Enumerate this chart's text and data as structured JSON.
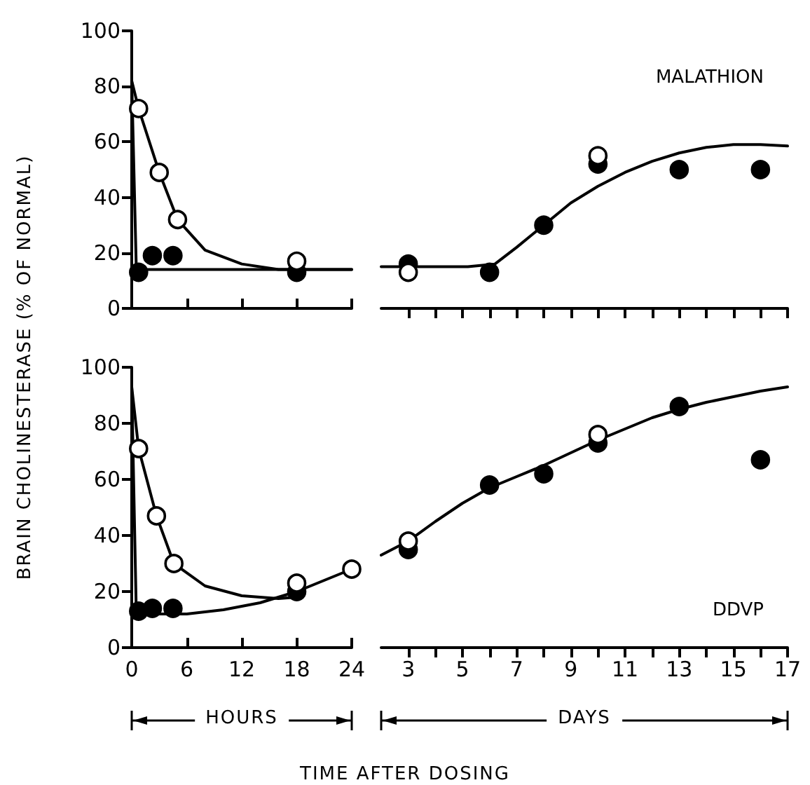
{
  "chart_data": [
    {
      "type": "scatter",
      "ylabel": "BRAIN CHOLINESTERASE  (% OF NORMAL)",
      "xlim": [
        0,
        24
      ],
      "xticks": [
        0,
        6,
        12,
        18,
        24
      ],
      "ylim": [
        0,
        100
      ],
      "yticks": [
        0,
        20,
        40,
        60,
        80,
        100
      ],
      "tick_labels": "y",
      "marker": "circle",
      "series": [
        {
          "type": "line",
          "marker": "none",
          "color": "#000000",
          "x": [
            0,
            0.75,
            3,
            5,
            8,
            12,
            16,
            24
          ],
          "values": [
            82,
            72,
            49,
            32,
            21,
            16,
            14,
            14
          ]
        },
        {
          "type": "line",
          "marker": "none",
          "color": "#000000",
          "x": [
            0,
            0.5,
            24
          ],
          "values": [
            82,
            14,
            14
          ]
        },
        {
          "color": "#000000",
          "x": [
            0.75,
            2.25,
            4.5,
            18
          ],
          "values": [
            13,
            19,
            19,
            13
          ]
        },
        {
          "color": "#ffffff",
          "x": [
            0.75,
            3,
            5,
            18
          ],
          "values": [
            72,
            49,
            32,
            17
          ]
        }
      ]
    },
    {
      "type": "scatter",
      "title": "MALATHION",
      "xlim": [
        2,
        17
      ],
      "xticks": [
        3,
        {
          "value": 4,
          "label": null
        },
        5,
        {
          "value": 6,
          "label": null
        },
        7,
        {
          "value": 8,
          "label": null
        },
        9,
        {
          "value": 10,
          "label": null
        },
        11,
        {
          "value": 12,
          "label": null
        },
        13,
        {
          "value": 14,
          "label": null
        },
        15,
        {
          "value": 16,
          "label": null
        },
        17
      ],
      "ylim": [
        0,
        100
      ],
      "tick_labels": false,
      "marker": "circle",
      "series": [
        {
          "type": "line",
          "marker": "none",
          "color": "#000000",
          "x": [
            2,
            5.2,
            6.2,
            7,
            8,
            9,
            10,
            11,
            12,
            13,
            14,
            15,
            16,
            17
          ],
          "values": [
            15,
            15,
            16,
            22,
            30,
            38,
            44,
            49,
            53,
            56,
            58,
            59,
            59,
            58.5
          ]
        },
        {
          "color": "#000000",
          "x": [
            3,
            6,
            8,
            10,
            13,
            16
          ],
          "values": [
            16,
            13,
            30,
            52,
            50,
            50
          ]
        },
        {
          "color": "#ffffff",
          "x": [
            3,
            10
          ],
          "values": [
            13,
            55
          ]
        }
      ]
    },
    {
      "type": "scatter",
      "xlabel": "HOURS",
      "annotations": [
        "TIME AFTER DOSING"
      ],
      "xlim": [
        0,
        24
      ],
      "xticks": [
        0,
        6,
        12,
        18,
        24
      ],
      "ylim": [
        0,
        100
      ],
      "yticks": [
        0,
        20,
        40,
        60,
        80,
        100
      ],
      "marker": "circle",
      "series": [
        {
          "type": "line",
          "marker": "none",
          "color": "#000000",
          "x": [
            0,
            0.75,
            2.7,
            4.6,
            8,
            12,
            16,
            18
          ],
          "values": [
            93,
            71,
            47,
            30,
            22,
            18.5,
            17.5,
            18
          ]
        },
        {
          "type": "line",
          "marker": "none",
          "color": "#000000",
          "x": [
            0,
            0.5,
            6,
            10,
            14,
            18,
            21,
            24
          ],
          "values": [
            93,
            12,
            12,
            13.5,
            16,
            20,
            24,
            28
          ]
        },
        {
          "color": "#000000",
          "x": [
            0.75,
            2.25,
            4.5,
            18
          ],
          "values": [
            13,
            14,
            14,
            20
          ]
        },
        {
          "color": "#ffffff",
          "x": [
            0.75,
            2.7,
            4.6,
            18,
            24
          ],
          "values": [
            71,
            47,
            30,
            23,
            28
          ]
        }
      ]
    },
    {
      "type": "scatter",
      "title": "DDVP",
      "xlabel": "DAYS",
      "xlim": [
        2,
        17
      ],
      "xticks": [
        3,
        {
          "value": 4,
          "label": null
        },
        5,
        {
          "value": 6,
          "label": null
        },
        7,
        {
          "value": 8,
          "label": null
        },
        9,
        {
          "value": 10,
          "label": null
        },
        11,
        {
          "value": 12,
          "label": null
        },
        13,
        {
          "value": 14,
          "label": null
        },
        15,
        {
          "value": 16,
          "label": null
        },
        17
      ],
      "ylim": [
        0,
        100
      ],
      "tick_labels": "x",
      "marker": "circle",
      "series": [
        {
          "type": "line",
          "marker": "none",
          "color": "#000000",
          "x": [
            2,
            3,
            4,
            5,
            6,
            7,
            8,
            9,
            10,
            11,
            12,
            13,
            14,
            15,
            16,
            17
          ],
          "values": [
            33,
            38,
            45,
            51.5,
            57,
            61,
            65,
            69.5,
            74,
            78,
            82,
            85,
            87.5,
            89.5,
            91.5,
            93
          ]
        },
        {
          "color": "#000000",
          "x": [
            3,
            6,
            8,
            10,
            13,
            16
          ],
          "values": [
            35,
            58,
            62,
            73,
            86,
            67
          ]
        },
        {
          "color": "#ffffff",
          "x": [
            3,
            10
          ],
          "values": [
            38,
            76
          ]
        }
      ]
    }
  ]
}
